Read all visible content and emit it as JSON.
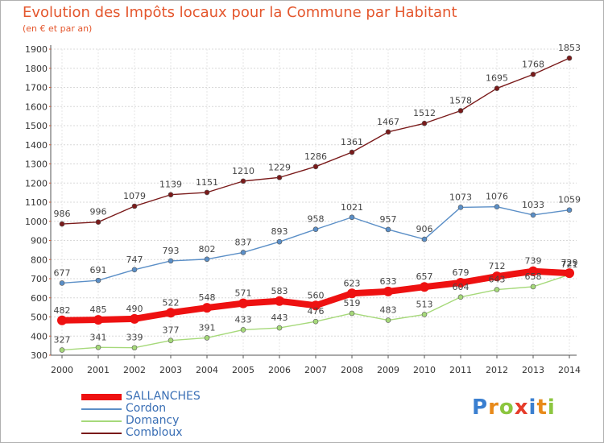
{
  "title": "Evolution des Impôts locaux pour la Commune par Habitant",
  "subtitle": "(en € et par an)",
  "logo": {
    "text": "Proxiti"
  },
  "chart_data": {
    "type": "line",
    "x": [
      "2000",
      "2001",
      "2002",
      "2003",
      "2004",
      "2005",
      "2006",
      "2007",
      "2008",
      "2009",
      "2010",
      "2011",
      "2012",
      "2013",
      "2014"
    ],
    "ylim": [
      300,
      1900
    ],
    "yticks": [
      "300",
      "400",
      "500",
      "600",
      "700",
      "800",
      "900",
      "1000",
      "1100",
      "1200",
      "1300",
      "1400",
      "1500",
      "1600",
      "1700",
      "1800",
      "1900"
    ],
    "grid": "horizontal",
    "legend_position": "bottom-left",
    "series": [
      {
        "name": "Combloux",
        "color": "#7a1a1a",
        "values": [
          986,
          996,
          1079,
          1139,
          1151,
          1210,
          1229,
          1286,
          1361,
          1467,
          1512,
          1578,
          1695,
          1768,
          1853
        ],
        "labels": [
          "986",
          "996",
          "1079",
          "1139",
          "1151",
          "1210",
          "1229",
          "1286",
          "1361",
          "1467",
          "1512",
          "1578",
          "1695",
          "1768",
          "1853"
        ]
      },
      {
        "name": "Cordon",
        "color": "#5b8fc7",
        "values": [
          677,
          691,
          747,
          793,
          802,
          837,
          893,
          958,
          1021,
          957,
          906,
          1073,
          1076,
          1033,
          1059
        ],
        "labels": [
          "677",
          "691",
          "747",
          "793",
          "802",
          "837",
          "893",
          "958",
          "1021",
          "957",
          "906",
          "1073",
          "1076",
          "1033",
          "1059"
        ]
      },
      {
        "name": "Domancy",
        "color": "#a6d97a",
        "values": [
          327,
          341,
          339,
          377,
          391,
          433,
          443,
          476,
          519,
          483,
          513,
          604,
          643,
          658,
          721
        ],
        "labels": [
          "327",
          "341",
          "339",
          "377",
          "391",
          "433",
          "443",
          "476",
          "519",
          "483",
          "513",
          "604",
          "643",
          "658",
          "721"
        ]
      },
      {
        "name": "SALLANCHES",
        "color": "#ee1111",
        "values": [
          482,
          485,
          490,
          522,
          548,
          571,
          583,
          560,
          623,
          633,
          657,
          679,
          712,
          739,
          729
        ],
        "labels": [
          "482",
          "485",
          "490",
          "522",
          "548",
          "571",
          "583",
          "560",
          "623",
          "633",
          "657",
          "679",
          "712",
          "739",
          "729"
        ]
      }
    ]
  }
}
